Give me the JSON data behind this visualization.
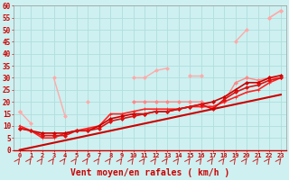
{
  "xlabel": "Vent moyen/en rafales ( km/h )",
  "background_color": "#cef0f0",
  "grid_color": "#b0dede",
  "x_values": [
    0,
    1,
    2,
    3,
    4,
    5,
    6,
    7,
    8,
    9,
    10,
    11,
    12,
    13,
    14,
    15,
    16,
    17,
    18,
    19,
    20,
    21,
    22,
    23
  ],
  "ylim": [
    0,
    60
  ],
  "yticks": [
    0,
    5,
    10,
    15,
    20,
    25,
    30,
    35,
    40,
    45,
    50,
    55,
    60
  ],
  "figsize": [
    3.2,
    2.0
  ],
  "dpi": 100,
  "series": [
    {
      "color": "#ffaaaa",
      "lw": 1.0,
      "marker": "D",
      "ms": 2.0,
      "y": [
        16,
        11,
        null,
        30,
        14,
        null,
        20,
        null,
        null,
        null,
        30,
        30,
        33,
        34,
        null,
        31,
        31,
        null,
        null,
        45,
        50,
        null,
        55,
        58
      ]
    },
    {
      "color": "#ffaaaa",
      "lw": 1.0,
      "marker": "D",
      "ms": 2.0,
      "y": [
        16,
        null,
        null,
        null,
        null,
        null,
        null,
        null,
        null,
        null,
        null,
        null,
        null,
        null,
        null,
        null,
        null,
        null,
        null,
        null,
        null,
        null,
        55,
        58
      ]
    },
    {
      "color": "#ff8888",
      "lw": 1.0,
      "marker": "D",
      "ms": 2.0,
      "y": [
        null,
        null,
        null,
        null,
        null,
        null,
        null,
        null,
        null,
        null,
        20,
        20,
        20,
        20,
        20,
        20,
        20,
        18,
        20,
        28,
        30,
        29,
        30,
        30
      ]
    },
    {
      "color": "#ff2222",
      "lw": 1.2,
      "marker": "+",
      "ms": 3.5,
      "y": [
        10,
        8,
        5,
        5,
        7,
        8,
        9,
        10,
        15,
        15,
        16,
        17,
        17,
        17,
        17,
        18,
        18,
        18,
        20,
        22,
        24,
        25,
        28,
        30
      ]
    },
    {
      "color": "#cc0000",
      "lw": 1.2,
      "marker": "D",
      "ms": 2.0,
      "y": [
        9,
        8,
        7,
        7,
        7,
        8,
        8,
        10,
        13,
        14,
        15,
        15,
        16,
        16,
        17,
        18,
        19,
        20,
        22,
        25,
        28,
        28,
        30,
        31
      ]
    },
    {
      "color": "#dd1111",
      "lw": 1.2,
      "marker": "D",
      "ms": 2.0,
      "y": [
        9,
        8,
        6,
        6,
        6,
        8,
        8,
        9,
        12,
        13,
        14,
        15,
        16,
        16,
        17,
        18,
        19,
        17,
        21,
        24,
        26,
        27,
        29,
        30
      ]
    },
    {
      "color": "#cc0000",
      "lw": 1.5,
      "marker": null,
      "ms": 0,
      "y": [
        0,
        1,
        2,
        3,
        4,
        5,
        6,
        7,
        8,
        9,
        10,
        11,
        12,
        13,
        14,
        15,
        16,
        17,
        18,
        19,
        20,
        21,
        22,
        23
      ]
    }
  ],
  "arrow_color": "#cc2222",
  "xlabel_color": "#cc0000",
  "tick_color": "#cc0000"
}
